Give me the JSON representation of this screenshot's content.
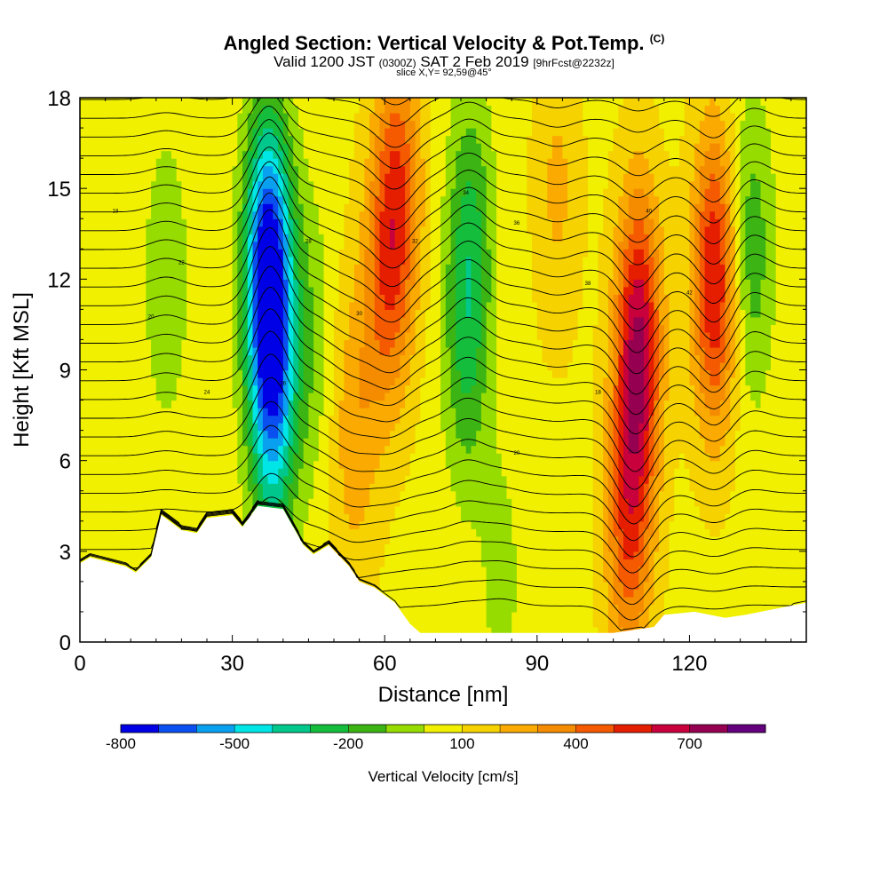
{
  "chart_data": {
    "type": "heatmap",
    "title": "Angled Section: Vertical Velocity & Pot.Temp.",
    "title_unit": "(C)",
    "subtitle_valid": "Valid 1200 JST",
    "subtitle_utc": "(0300Z)",
    "subtitle_date": "SAT 2 Feb 2019",
    "subtitle_fcst": "[9hrFcst@2232z]",
    "slice_text": "slice X,Y= 92,59@45°",
    "xlabel": "Distance [nm]",
    "ylabel": "Height [Kft MSL]",
    "xlim": [
      0,
      143
    ],
    "ylim": [
      0,
      18
    ],
    "xticks": [
      0,
      30,
      60,
      90,
      120
    ],
    "yticks": [
      0,
      3,
      6,
      9,
      12,
      15,
      18
    ],
    "colorbar": {
      "label": "Vertical Velocity [cm/s]",
      "range": [
        -800,
        900
      ],
      "tick_labels": [
        -800,
        -500,
        -200,
        100,
        400,
        700
      ],
      "colors": [
        "#0000e6",
        "#0a50f0",
        "#0aa0f0",
        "#00e6e6",
        "#00c88c",
        "#14be3c",
        "#3cb414",
        "#96dc00",
        "#f0f000",
        "#f5d200",
        "#faaa00",
        "#f58c00",
        "#f55a00",
        "#e61e00",
        "#c8003c",
        "#960050",
        "#64007d"
      ]
    },
    "velocity_centers": [
      {
        "x": 37,
        "z": 12.5,
        "w": -800
      },
      {
        "x": 38,
        "z": 8,
        "w": -500
      },
      {
        "x": 17,
        "z": 12,
        "w": -150
      },
      {
        "x": 45,
        "z": 10,
        "w": -150
      },
      {
        "x": 76,
        "z": 10,
        "w": -250
      },
      {
        "x": 77,
        "z": 14,
        "w": -200
      },
      {
        "x": 83,
        "z": 2,
        "w": -100
      },
      {
        "x": 132,
        "z": 13,
        "w": -250
      },
      {
        "x": 60,
        "z": 12,
        "w": 300
      },
      {
        "x": 63,
        "z": 15,
        "w": 350
      },
      {
        "x": 110,
        "z": 10,
        "w": 600
      },
      {
        "x": 125,
        "z": 12,
        "w": 550
      },
      {
        "x": 108,
        "z": 4,
        "w": 400
      },
      {
        "x": 54,
        "z": 7,
        "w": 200
      },
      {
        "x": 94,
        "z": 15,
        "w": 150
      }
    ],
    "terrain": [
      [
        0,
        2.6
      ],
      [
        2,
        2.8
      ],
      [
        9,
        2.5
      ],
      [
        11,
        2.3
      ],
      [
        14,
        2.8
      ],
      [
        16,
        4.2
      ],
      [
        20,
        3.7
      ],
      [
        23,
        3.6
      ],
      [
        25,
        4.1
      ],
      [
        30,
        4.2
      ],
      [
        32,
        3.8
      ],
      [
        35,
        4.5
      ],
      [
        40,
        4.4
      ],
      [
        44,
        3.2
      ],
      [
        46,
        2.9
      ],
      [
        49,
        3.2
      ],
      [
        53,
        2.5
      ],
      [
        55,
        2.0
      ],
      [
        58,
        1.8
      ],
      [
        62,
        1.3
      ],
      [
        65,
        0.6
      ],
      [
        67,
        0.3
      ],
      [
        90,
        0.3
      ],
      [
        105,
        0.3
      ],
      [
        113,
        0.5
      ],
      [
        115,
        0.9
      ],
      [
        121,
        1.0
      ],
      [
        127,
        0.8
      ],
      [
        131,
        0.9
      ],
      [
        137,
        1.1
      ],
      [
        143,
        1.3
      ]
    ],
    "isentrope_labels": [
      "18",
      "20",
      "22",
      "24",
      "26",
      "28",
      "30",
      "32",
      "34",
      "36",
      "38",
      "40",
      "42"
    ]
  }
}
